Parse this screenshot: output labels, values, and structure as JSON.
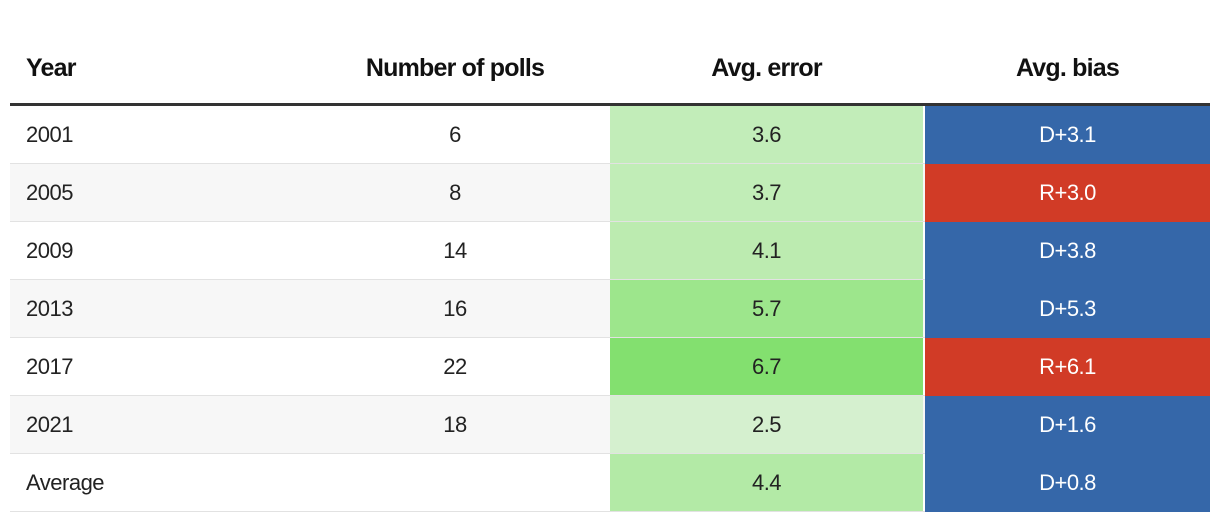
{
  "table": {
    "header": [
      "Year",
      "Number of polls",
      "Avg. error",
      "Avg. bias"
    ],
    "rows": [
      [
        "2001",
        6,
        3.6,
        "D+3.1"
      ],
      [
        "2005",
        8,
        3.7,
        "R+3.0"
      ],
      [
        "2009",
        14,
        4.1,
        "D+3.8"
      ],
      [
        "2013",
        16,
        5.7,
        "D+5.3"
      ],
      [
        "2017",
        22,
        6.7,
        "R+6.1"
      ],
      [
        "2021",
        18,
        2.5,
        "D+1.6"
      ],
      [
        "Average",
        null,
        4.4,
        "D+0.8"
      ]
    ],
    "error_colors": [
      "#c2edb9",
      "#c1edb7",
      "#bcebb0",
      "#9de68c",
      "#83e06f",
      "#d5f0cf",
      "#b3eaa6"
    ],
    "bias_colors": [
      "#3567a9",
      "#d13b26",
      "#3567a9",
      "#3567a9",
      "#d13b26",
      "#3567a9",
      "#3567a9"
    ]
  }
}
